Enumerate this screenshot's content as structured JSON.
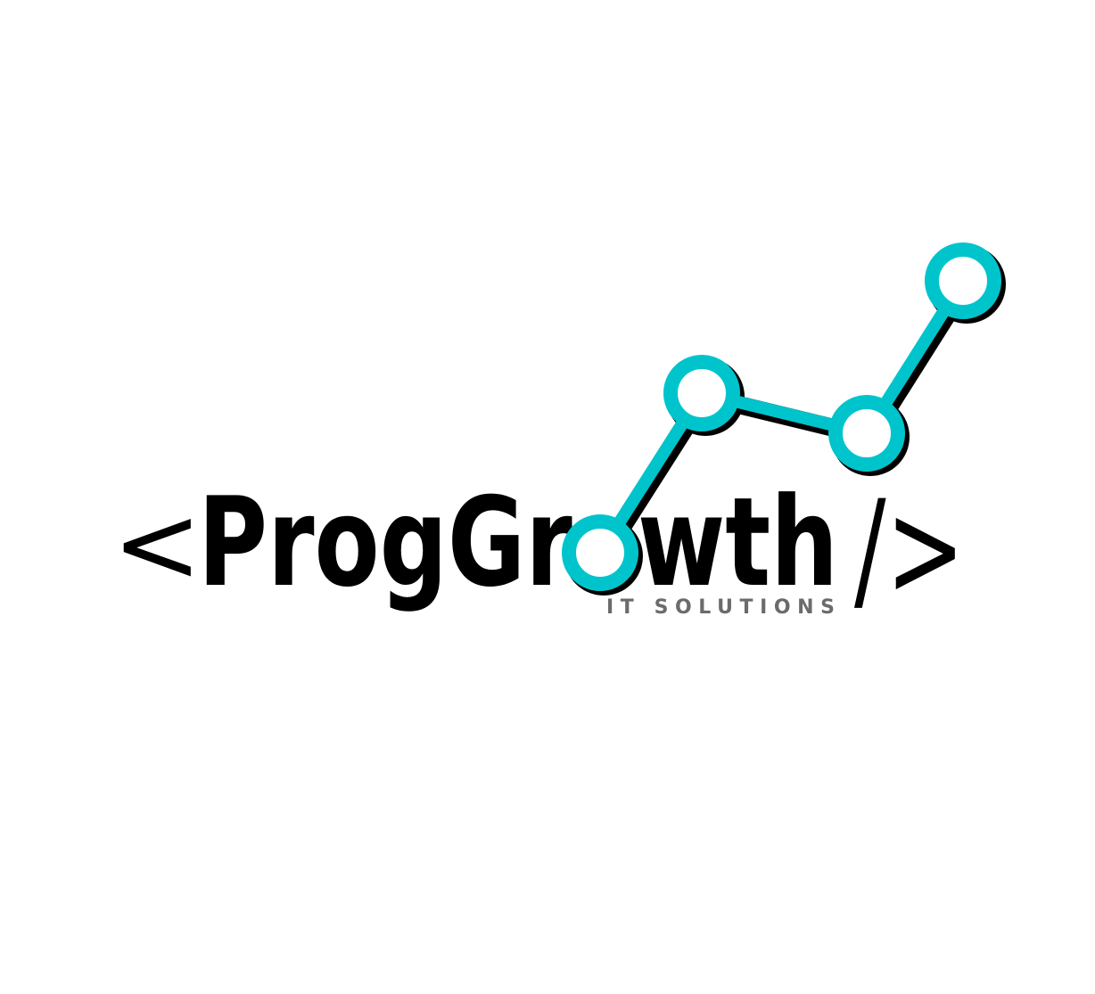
{
  "logo": {
    "open_bracket": "<",
    "brand_name": "ProgGrowth",
    "close_bracket": "/>",
    "tagline": "IT SOLUTIONS"
  },
  "colors": {
    "text": "#000000",
    "accent": "#00C4CC",
    "tagline": "#6b6b6b",
    "background": "#ffffff"
  },
  "icons": [
    "growth-chart-icon"
  ]
}
